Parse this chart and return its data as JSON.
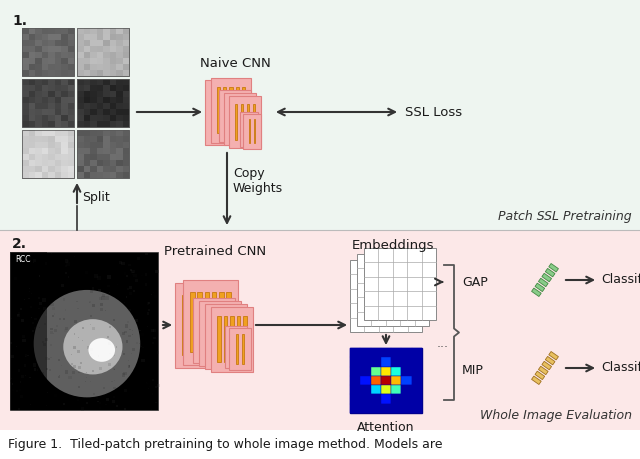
{
  "bg_top": "#eef5f0",
  "bg_bottom": "#fce8e8",
  "text_color": "#1a1a1a",
  "arrow_color": "#333333",
  "cnn_pink_face": "#f4b0b0",
  "cnn_pink_edge": "#e08080",
  "cnn_orange_face": "#f0a020",
  "cnn_orange_edge": "#c07000",
  "section1_label": "1.",
  "section2_label": "2.",
  "label_naive_cnn": "Naive CNN",
  "label_ssl_loss": "SSL Loss",
  "label_copy_weights": "Copy\nWeights",
  "label_split": "Split",
  "label_patch_ssl": "Patch SSL Pretraining",
  "label_pretrained_cnn": "Pretrained CNN",
  "label_embeddings": "Embeddings",
  "label_attention": "Attention",
  "label_gap": "GAP",
  "label_mip": "MIP",
  "label_classify1": "Classify",
  "label_classify2": "Classify",
  "label_whole_image": "Whole Image Evaluation",
  "fig_caption": "Figure 1.  Tiled-patch pretraining to whole image method. Models are"
}
